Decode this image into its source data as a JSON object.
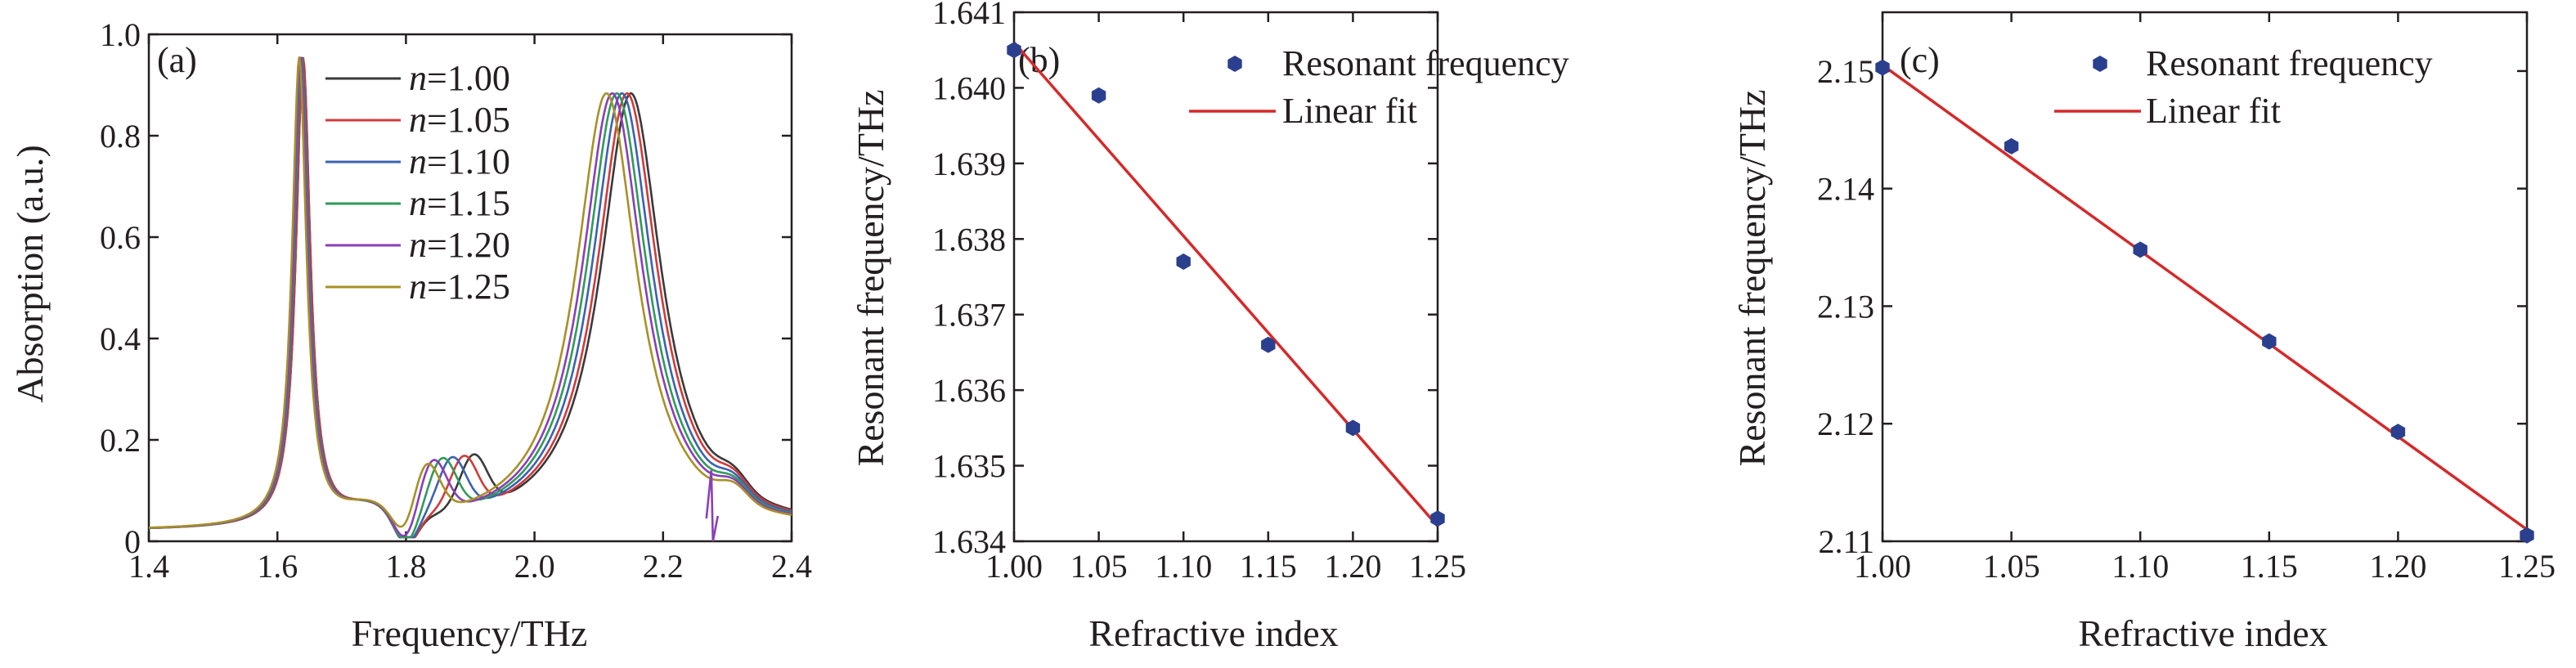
{
  "chart_data": [
    {
      "type": "line",
      "panel_label": "(a)",
      "xlabel": "Frequency/THz",
      "ylabel": "Absorption (a.u.)",
      "xlim": [
        1.4,
        2.4
      ],
      "ylim": [
        0,
        1.0
      ],
      "xticks": [
        1.4,
        1.6,
        1.8,
        2.0,
        2.2,
        2.4
      ],
      "xtick_labels": [
        "1.4",
        "1.6",
        "1.8",
        "2.0",
        "2.2",
        "2.4"
      ],
      "yticks": [
        0,
        0.2,
        0.4,
        0.6,
        0.8,
        1.0
      ],
      "ytick_labels": [
        "0",
        "0.2",
        "0.4",
        "0.6",
        "0.8",
        "1.0"
      ],
      "legend_position": "top-center",
      "series": [
        {
          "name_prefix": "n",
          "name_value": "=1.00",
          "color": "#3a3a3a",
          "peak1": 1.64,
          "peak2": 2.15,
          "bump": 1.905,
          "dip": 2.29
        },
        {
          "name_prefix": "n",
          "name_value": "=1.05",
          "color": "#d23a3a",
          "peak1": 1.64,
          "peak2": 2.144,
          "bump": 1.89,
          "dip": 2.285
        },
        {
          "name_prefix": "n",
          "name_value": "=1.10",
          "color": "#3a63b0",
          "peak1": 1.638,
          "peak2": 2.136,
          "bump": 1.872,
          "dip": 2.282
        },
        {
          "name_prefix": "n",
          "name_value": "=1.15",
          "color": "#2f9a5a",
          "peak1": 1.637,
          "peak2": 2.128,
          "bump": 1.857,
          "dip": 2.278
        },
        {
          "name_prefix": "n",
          "name_value": "=1.20",
          "color": "#8a3fb8",
          "peak1": 1.636,
          "peak2": 2.121,
          "bump": 1.842,
          "dip": 2.275
        },
        {
          "name_prefix": "n",
          "name_value": "=1.25",
          "color": "#a89026",
          "peak1": 1.634,
          "peak2": 2.112,
          "bump": 1.83,
          "dip": 2.27
        }
      ]
    },
    {
      "type": "scatter",
      "panel_label": "(b)",
      "xlabel": "Refractive index",
      "ylabel": "Resonant frequency/THz",
      "xlim": [
        1.0,
        1.25
      ],
      "ylim": [
        1.634,
        1.641
      ],
      "xticks": [
        1.0,
        1.05,
        1.1,
        1.15,
        1.2,
        1.25
      ],
      "xtick_labels": [
        "1.00",
        "1.05",
        "1.10",
        "1.15",
        "1.20",
        "1.25"
      ],
      "yticks": [
        1.634,
        1.635,
        1.636,
        1.637,
        1.638,
        1.639,
        1.64,
        1.641
      ],
      "ytick_labels": [
        "1.634",
        "1.635",
        "1.636",
        "1.637",
        "1.638",
        "1.639",
        "1.640",
        "1.641"
      ],
      "legend_position": "top-right",
      "legend": {
        "points": "Resonant frequency",
        "fit": "Linear fit"
      },
      "x": [
        1.0,
        1.05,
        1.1,
        1.15,
        1.2,
        1.25
      ],
      "y": [
        1.6405,
        1.6399,
        1.6377,
        1.6366,
        1.6355,
        1.6343
      ],
      "fit": {
        "x": [
          1.0,
          1.25
        ],
        "y": [
          1.6406,
          1.6342
        ]
      },
      "point_color": "#2b3f8f",
      "fit_color": "#d42a2a"
    },
    {
      "type": "scatter",
      "panel_label": "(c)",
      "xlabel": "Refractive index",
      "ylabel": "Resonant frequency/THz",
      "xlim": [
        1.0,
        1.25
      ],
      "ylim": [
        2.11,
        2.155
      ],
      "xticks": [
        1.0,
        1.05,
        1.1,
        1.15,
        1.2,
        1.25
      ],
      "xtick_labels": [
        "1.00",
        "1.05",
        "1.10",
        "1.15",
        "1.20",
        "1.25"
      ],
      "yticks": [
        2.11,
        2.12,
        2.13,
        2.14,
        2.15
      ],
      "ytick_labels": [
        "2.11",
        "2.12",
        "2.13",
        "2.14",
        "2.15"
      ],
      "legend_position": "top-right",
      "legend": {
        "points": "Resonant frequency",
        "fit": "Linear fit"
      },
      "x": [
        1.0,
        1.05,
        1.1,
        1.15,
        1.2,
        1.25
      ],
      "y": [
        2.1503,
        2.1436,
        2.1348,
        2.127,
        2.1193,
        2.1105
      ],
      "fit": {
        "x": [
          1.0,
          1.25
        ],
        "y": [
          2.1505,
          2.111
        ]
      },
      "point_color": "#2b3f8f",
      "fit_color": "#d42a2a"
    }
  ]
}
